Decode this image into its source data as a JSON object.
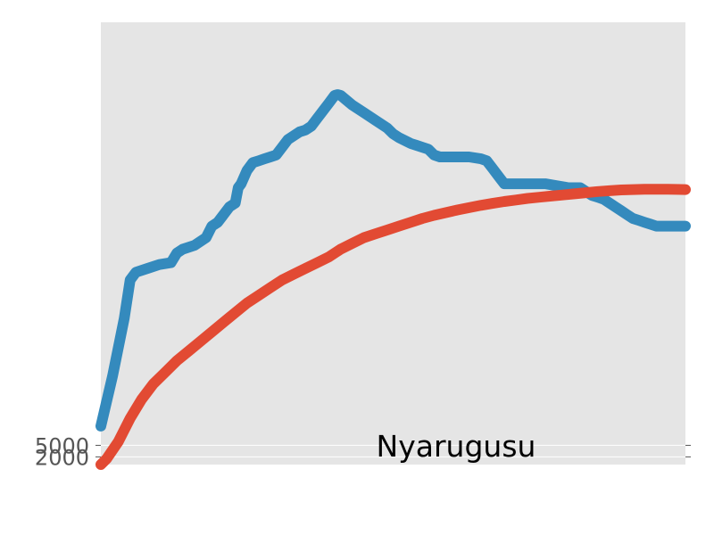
{
  "chart_data": {
    "type": "line",
    "annotation": "Nyarugusu",
    "yticks": [
      2000,
      5000
    ],
    "ylim": [
      0,
      115000
    ],
    "xlim": [
      0,
      100
    ],
    "grid": true,
    "background": "#e5e5e5",
    "series": [
      {
        "color": "#348abd",
        "x": [
          0,
          2,
          4,
          5,
          6,
          8,
          10,
          12,
          13,
          14,
          16,
          18,
          19,
          20,
          22,
          23,
          23.5,
          24,
          25,
          26,
          27,
          28,
          29,
          30,
          32,
          34,
          35,
          36,
          37,
          38,
          39,
          40,
          40.5,
          41,
          43,
          45,
          47,
          49,
          50,
          51,
          53,
          54,
          55,
          56,
          57,
          58,
          59,
          60,
          61,
          62,
          63,
          65,
          66,
          67,
          68,
          69,
          70,
          71,
          72,
          74,
          75,
          76,
          78,
          80,
          81,
          82,
          83,
          84,
          85,
          86,
          87,
          88,
          89,
          90,
          91,
          92,
          93,
          94,
          95,
          96,
          97,
          98,
          99,
          100
        ],
        "y": [
          10000,
          23000,
          38000,
          48000,
          50000,
          51000,
          52000,
          52500,
          55000,
          56000,
          57000,
          59000,
          62000,
          63000,
          67000,
          68000,
          72000,
          73000,
          76500,
          78500,
          79000,
          79500,
          80000,
          80500,
          84500,
          86500,
          87000,
          88000,
          90000,
          92000,
          94000,
          96000,
          96200,
          96000,
          93500,
          91500,
          89500,
          87500,
          86000,
          85000,
          83500,
          83000,
          82500,
          82000,
          80500,
          80000,
          80000,
          80000,
          80000,
          80000,
          80000,
          79500,
          79000,
          77000,
          75000,
          73000,
          73000,
          73000,
          73000,
          73000,
          73000,
          73000,
          72500,
          72000,
          72000,
          72000,
          71000,
          70000,
          69500,
          69000,
          68000,
          67000,
          66000,
          65000,
          64000,
          63500,
          63000,
          62500,
          62000,
          62000,
          62000,
          62000,
          62000,
          62000
        ]
      },
      {
        "color": "#e24a33",
        "x": [
          0,
          1,
          3,
          5,
          7,
          9,
          11,
          13,
          15,
          17,
          19,
          21,
          23,
          25,
          27,
          29,
          31,
          33,
          35,
          37,
          39,
          41,
          43,
          45,
          47,
          49,
          51,
          53,
          55,
          57,
          59,
          61,
          63,
          65,
          67,
          69,
          71,
          73,
          75,
          77,
          79,
          81,
          83,
          85,
          87,
          89,
          91,
          93,
          95,
          97,
          100
        ],
        "y": [
          0,
          1500,
          6000,
          12000,
          17000,
          21000,
          24000,
          27000,
          29500,
          32000,
          34500,
          37000,
          39500,
          42000,
          44000,
          46000,
          48000,
          49500,
          51000,
          52500,
          54000,
          56000,
          57500,
          59000,
          60000,
          61000,
          62000,
          63000,
          64000,
          64800,
          65500,
          66200,
          66800,
          67400,
          67900,
          68400,
          68800,
          69200,
          69500,
          69800,
          70100,
          70400,
          70700,
          71000,
          71200,
          71400,
          71500,
          71600,
          71600,
          71600,
          71500
        ]
      }
    ]
  }
}
